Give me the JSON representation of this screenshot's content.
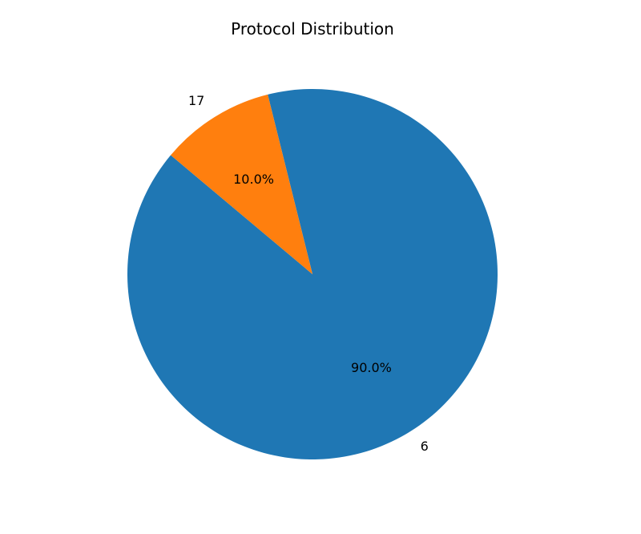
{
  "chart_data": {
    "type": "pie",
    "title": "Protocol Distribution",
    "categories": [
      "6",
      "17"
    ],
    "values": [
      90.0,
      10.0
    ],
    "percent_labels": [
      "90.0%",
      "10.0%"
    ],
    "colors": [
      "#1f77b4",
      "#ff7f0e"
    ],
    "start_angle_deg": 140,
    "direction": "counterclockwise",
    "legend": "none"
  }
}
